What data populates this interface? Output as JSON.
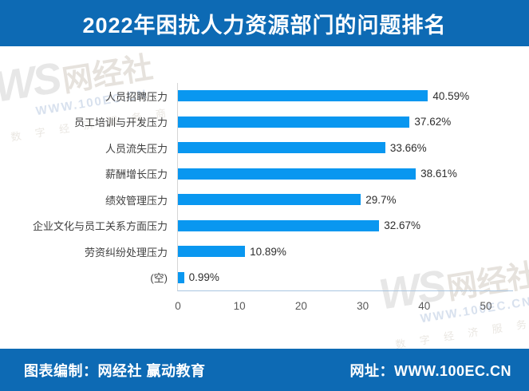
{
  "banner": {
    "title": "2022年困扰人力资源部门的问题排名",
    "bg_color": "#0d6ab4",
    "text_color": "#ffffff"
  },
  "footer": {
    "left": "图表编制：网经社 赢动教育",
    "right": "网址：WWW.100EC.CN"
  },
  "watermark": {
    "ws": "WS",
    "name": "网经社",
    "url": "WWW.100EC.CN",
    "tagline": "数 字 经 济 服 务 商"
  },
  "chart_data": {
    "type": "bar",
    "orientation": "horizontal",
    "title": "2022年困扰人力资源部门的问题排名",
    "categories": [
      "人员招聘压力",
      "员工培训与开发压力",
      "人员流失压力",
      "薪酬增长压力",
      "绩效管理压力",
      "企业文化与员工关系方面压力",
      "劳资纠纷处理压力",
      "(空)"
    ],
    "values": [
      40.59,
      37.62,
      33.66,
      38.61,
      29.7,
      32.67,
      10.89,
      0.99
    ],
    "value_labels": [
      "40.59%",
      "37.62%",
      "33.66%",
      "38.61%",
      "29.7%",
      "32.67%",
      "10.89%",
      "0.99%"
    ],
    "x_ticks": [
      0,
      10,
      20,
      30,
      40,
      50
    ],
    "xlim": [
      0,
      50
    ],
    "bar_color": "#0997f0",
    "grid": false,
    "legend": "none"
  }
}
